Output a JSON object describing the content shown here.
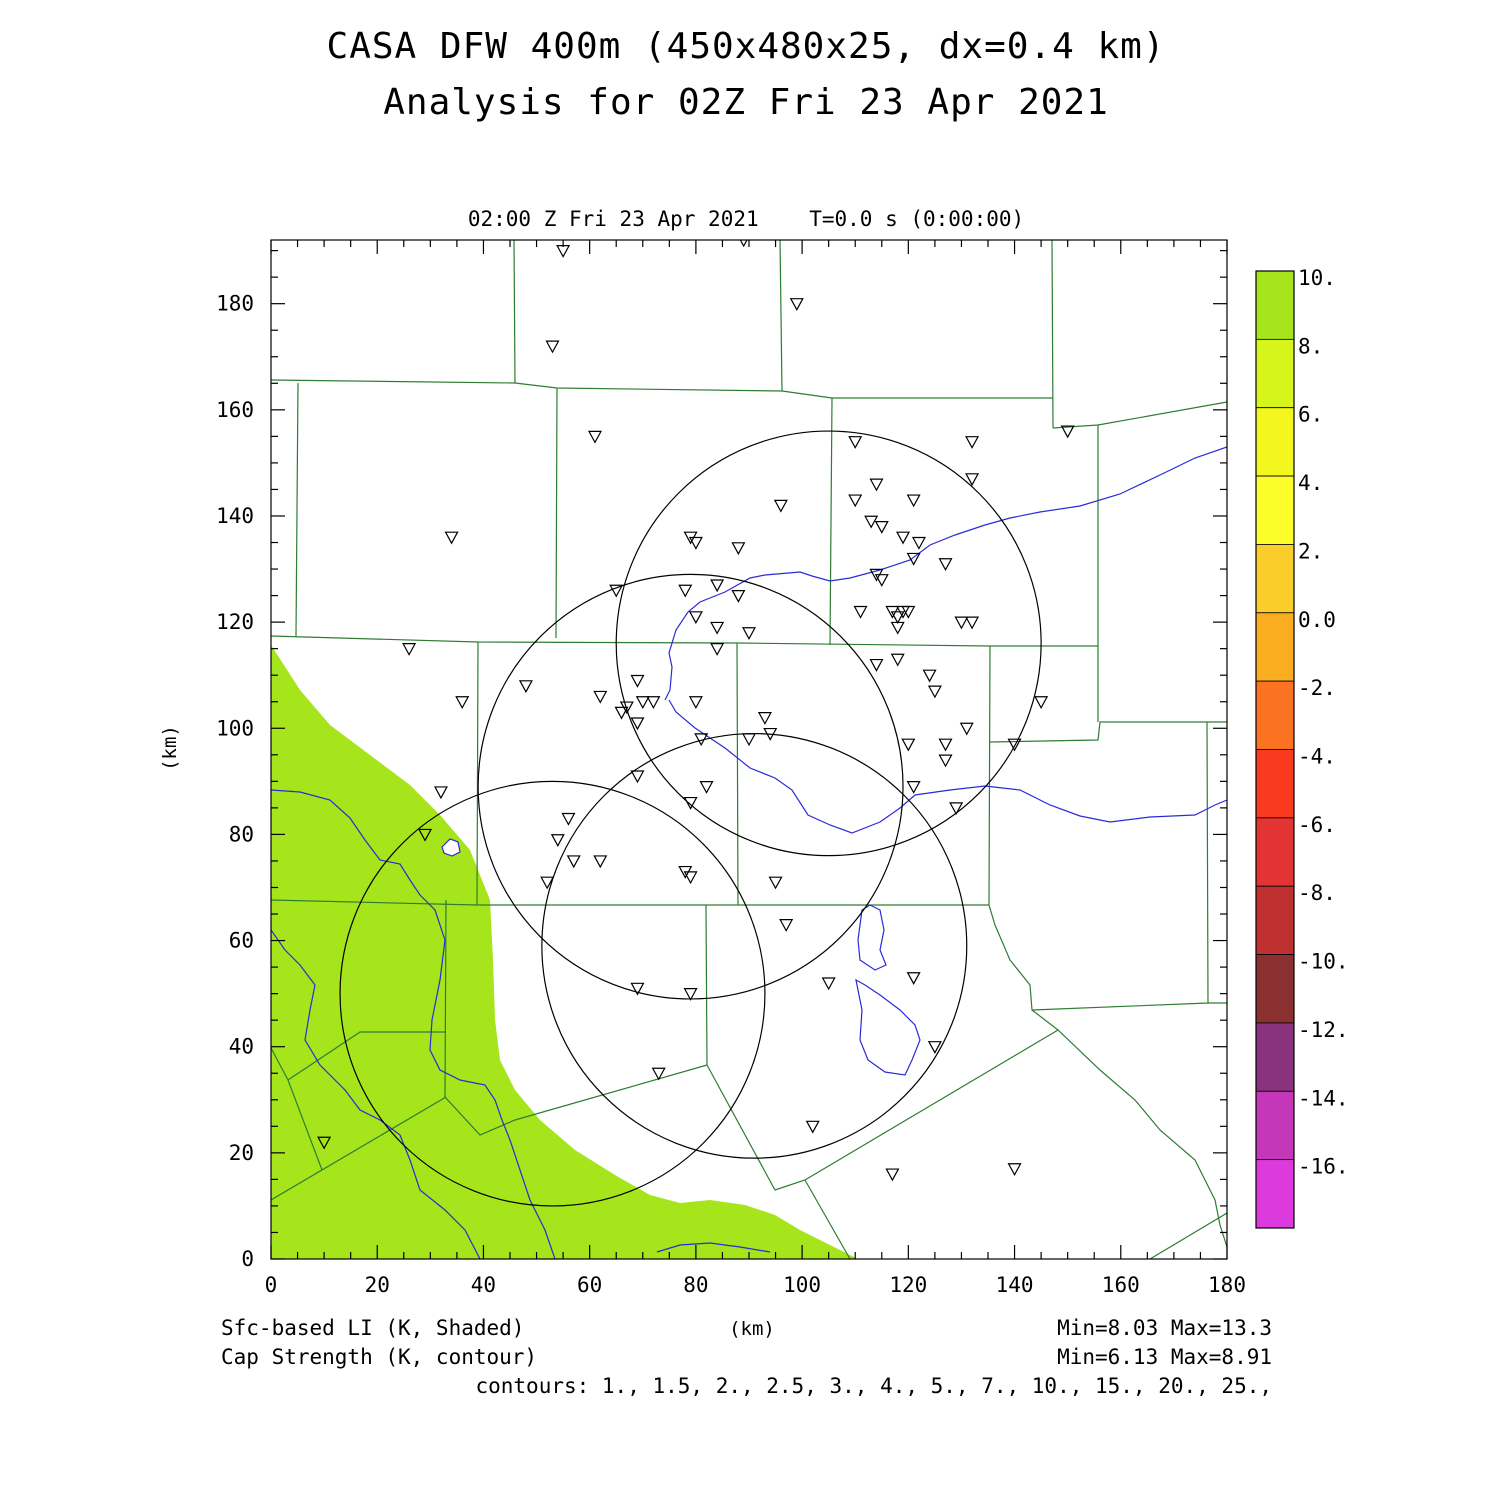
{
  "header": {
    "title_line1": "CASA DFW 400m (450x480x25, dx=0.4 km)",
    "title_line2": "Analysis for 02Z Fri 23 Apr 2021",
    "time_label": "02:00 Z Fri 23 Apr 2021    T=0.0 s (0:00:00)"
  },
  "axes": {
    "x_label": "(km)",
    "y_label": "(km)",
    "x_ticks": [
      "0",
      "20",
      "40",
      "60",
      "80",
      "100",
      "120",
      "140",
      "160",
      "180"
    ],
    "y_ticks": [
      "0",
      "20",
      "40",
      "60",
      "80",
      "100",
      "120",
      "140",
      "160",
      "180"
    ],
    "x_range": [
      0,
      180
    ],
    "y_range": [
      0,
      192
    ]
  },
  "colorbar": {
    "labels": [
      "10.",
      "8.",
      "6.",
      "4.",
      "2.",
      "0.0",
      "-2.",
      "-4.",
      "-6.",
      "-8.",
      "-10.",
      "-12.",
      "-14.",
      "-16."
    ],
    "colors": [
      "#a6e41c",
      "#d6f51a",
      "#f3f71d",
      "#fdfd2b",
      "#fbcd2a",
      "#fbad20",
      "#fb7320",
      "#fa3a1e",
      "#e33434",
      "#bf3130",
      "#8b3030",
      "#8a327e",
      "#c337b8",
      "#dc3adc"
    ]
  },
  "footer": {
    "shaded_label": "Sfc-based LI (K, Shaded)",
    "contour_label": "Cap Strength (K, contour)",
    "x_unit": "(km)",
    "shaded_minmax": "Min=8.03 Max=13.3",
    "contour_minmax": "Min=6.13 Max=8.91",
    "contours": "contours: 1., 1.5, 2., 2.5, 3., 4., 5., 7., 10., 15., 20., 25.,"
  },
  "map_data": {
    "shading_color": "#a6e41c",
    "county_line_color": "#2e7d32",
    "river_color": "#2b2bd6",
    "range_rings_km": [
      {
        "center": [
          105,
          116
        ],
        "radius": 40
      },
      {
        "center": [
          79,
          89
        ],
        "radius": 40
      },
      {
        "center": [
          91,
          59
        ],
        "radius": 40
      },
      {
        "center": [
          53,
          50
        ],
        "radius": 40
      }
    ],
    "station_marker": "triangle-down",
    "stations_km": [
      [
        55,
        190
      ],
      [
        89,
        192
      ],
      [
        99,
        180
      ],
      [
        53,
        172
      ],
      [
        61,
        155
      ],
      [
        34,
        136
      ],
      [
        110,
        154
      ],
      [
        132,
        154
      ],
      [
        150,
        156
      ],
      [
        132,
        147
      ],
      [
        114,
        146
      ],
      [
        121,
        143
      ],
      [
        110,
        143
      ],
      [
        96,
        142
      ],
      [
        113,
        139
      ],
      [
        115,
        138
      ],
      [
        119,
        136
      ],
      [
        122,
        135
      ],
      [
        79,
        136
      ],
      [
        80,
        135
      ],
      [
        88,
        134
      ],
      [
        127,
        131
      ],
      [
        121,
        132
      ],
      [
        114,
        129
      ],
      [
        115,
        128
      ],
      [
        65,
        126
      ],
      [
        78,
        126
      ],
      [
        84,
        127
      ],
      [
        88,
        125
      ],
      [
        80,
        121
      ],
      [
        111,
        122
      ],
      [
        117,
        122
      ],
      [
        118,
        121
      ],
      [
        119,
        122
      ],
      [
        120,
        122
      ],
      [
        130,
        120
      ],
      [
        132,
        120
      ],
      [
        84,
        119
      ],
      [
        90,
        118
      ],
      [
        118,
        119
      ],
      [
        26,
        115
      ],
      [
        84,
        115
      ],
      [
        118,
        113
      ],
      [
        114,
        112
      ],
      [
        124,
        110
      ],
      [
        69,
        109
      ],
      [
        48,
        108
      ],
      [
        125,
        107
      ],
      [
        62,
        106
      ],
      [
        36,
        105
      ],
      [
        70,
        105
      ],
      [
        72,
        105
      ],
      [
        80,
        105
      ],
      [
        145,
        105
      ],
      [
        67,
        104
      ],
      [
        66,
        103
      ],
      [
        93,
        102
      ],
      [
        69,
        101
      ],
      [
        131,
        100
      ],
      [
        94,
        99
      ],
      [
        81,
        98
      ],
      [
        90,
        98
      ],
      [
        127,
        97
      ],
      [
        120,
        97
      ],
      [
        140,
        97
      ],
      [
        127,
        94
      ],
      [
        69,
        91
      ],
      [
        32,
        88
      ],
      [
        82,
        89
      ],
      [
        121,
        89
      ],
      [
        79,
        86
      ],
      [
        129,
        85
      ],
      [
        56,
        83
      ],
      [
        29,
        80
      ],
      [
        54,
        79
      ],
      [
        57,
        75
      ],
      [
        62,
        75
      ],
      [
        78,
        73
      ],
      [
        79,
        72
      ],
      [
        95,
        71
      ],
      [
        52,
        71
      ],
      [
        97,
        63
      ],
      [
        121,
        53
      ],
      [
        105,
        52
      ],
      [
        69,
        51
      ],
      [
        79,
        50
      ],
      [
        125,
        40
      ],
      [
        73,
        35
      ],
      [
        102,
        25
      ],
      [
        10,
        22
      ],
      [
        117,
        16
      ],
      [
        140,
        17
      ]
    ]
  }
}
